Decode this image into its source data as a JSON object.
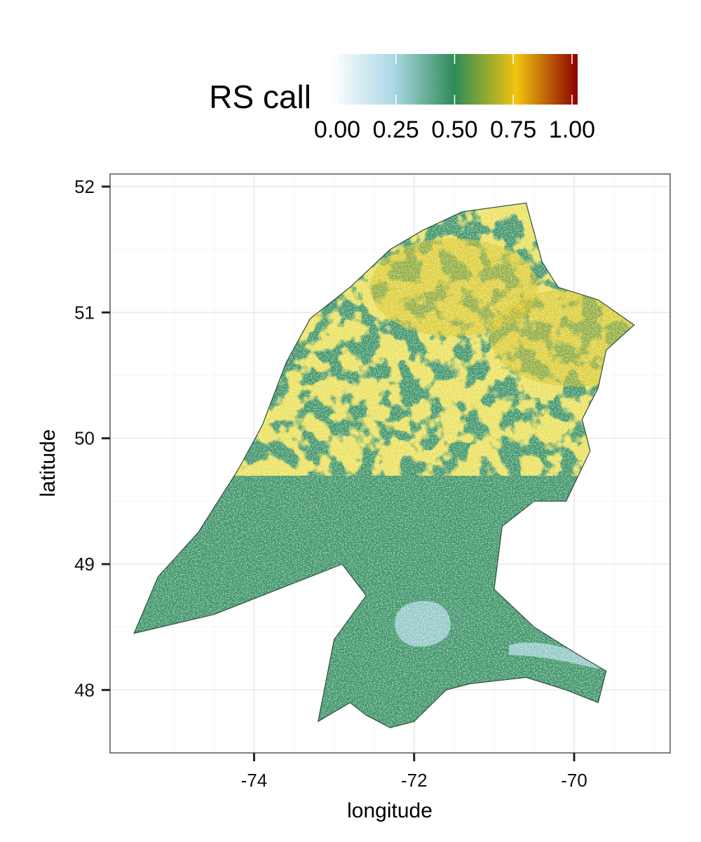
{
  "legend": {
    "title": "RS call",
    "breaks": [
      0.0,
      0.25,
      0.5,
      0.75,
      1.0
    ],
    "labels": [
      "0.00",
      "0.25",
      "0.50",
      "0.75",
      "1.00"
    ],
    "color_stops": [
      {
        "value": 0.0,
        "color": "#ffffff"
      },
      {
        "value": 0.25,
        "color": "#add8e6"
      },
      {
        "value": 0.5,
        "color": "#2e8b57"
      },
      {
        "value": 0.75,
        "color": "#f1c40f"
      },
      {
        "value": 1.0,
        "color": "#8b0000"
      }
    ]
  },
  "axes": {
    "x": {
      "title": "longitude",
      "ticks": [
        -74,
        -72,
        -70
      ],
      "tick_labels": [
        "-74",
        "-72",
        "-70"
      ],
      "range": [
        -75.8,
        -68.8
      ]
    },
    "y": {
      "title": "latitude",
      "ticks": [
        48,
        49,
        50,
        51,
        52
      ],
      "tick_labels": [
        "48",
        "49",
        "50",
        "51",
        "52"
      ],
      "range": [
        47.5,
        52.1
      ]
    },
    "grid": true
  },
  "colors": {
    "region_green": "#3e9468",
    "region_yellow": "#d4bf1c",
    "water_light": "#93c8c6",
    "boundary": "#2f4f3f",
    "panel_border": "#808080",
    "grid_major": "#e8e8e8",
    "grid_minor": "#f4f4f4"
  },
  "chart_data": {
    "type": "heatmap",
    "description_units": "longitude/latitude degrees",
    "xlabel": "longitude",
    "ylabel": "latitude",
    "xlim": [
      -75.8,
      -68.8
    ],
    "ylim": [
      47.5,
      52.1
    ],
    "fill_variable": "RS call",
    "fill_range": [
      0.0,
      1.0
    ],
    "region_outline": [
      [
        -71.4,
        51.8
      ],
      [
        -70.6,
        51.87
      ],
      [
        -70.4,
        51.4
      ],
      [
        -70.2,
        51.2
      ],
      [
        -69.7,
        51.1
      ],
      [
        -69.25,
        50.9
      ],
      [
        -69.6,
        50.7
      ],
      [
        -69.7,
        50.4
      ],
      [
        -69.9,
        50.15
      ],
      [
        -69.8,
        49.9
      ],
      [
        -70.1,
        49.5
      ],
      [
        -70.5,
        49.5
      ],
      [
        -70.9,
        49.3
      ],
      [
        -71.0,
        48.8
      ],
      [
        -70.5,
        48.5
      ],
      [
        -70.0,
        48.3
      ],
      [
        -69.6,
        48.15
      ],
      [
        -69.7,
        47.9
      ],
      [
        -70.1,
        48.0
      ],
      [
        -70.6,
        48.1
      ],
      [
        -71.3,
        48.05
      ],
      [
        -71.6,
        48.0
      ],
      [
        -72.0,
        47.75
      ],
      [
        -72.3,
        47.7
      ],
      [
        -72.6,
        47.8
      ],
      [
        -72.8,
        47.9
      ],
      [
        -73.2,
        47.75
      ],
      [
        -73.0,
        48.4
      ],
      [
        -72.6,
        48.75
      ],
      [
        -72.9,
        49.0
      ],
      [
        -73.3,
        48.9
      ],
      [
        -74.5,
        48.6
      ],
      [
        -75.5,
        48.45
      ],
      [
        -75.2,
        48.9
      ],
      [
        -74.7,
        49.25
      ],
      [
        -74.2,
        49.75
      ],
      [
        -73.9,
        50.1
      ],
      [
        -73.6,
        50.6
      ],
      [
        -73.3,
        50.95
      ],
      [
        -72.8,
        51.2
      ],
      [
        -72.3,
        51.5
      ],
      [
        -71.9,
        51.65
      ]
    ],
    "high_value_zones": [
      {
        "label": "",
        "value_range": [
          0.6,
          0.75
        ],
        "approx_center": [
          -71.5,
          51.2
        ]
      },
      {
        "label": "",
        "value_range": [
          0.6,
          0.75
        ],
        "approx_center": [
          -70.0,
          50.8
        ]
      }
    ],
    "water_bodies": [
      {
        "label": "",
        "approx_center": [
          -71.9,
          48.55
        ],
        "value": 0.3
      },
      {
        "label": "",
        "approx_center": [
          -70.2,
          48.3
        ],
        "value": 0.3
      }
    ]
  }
}
